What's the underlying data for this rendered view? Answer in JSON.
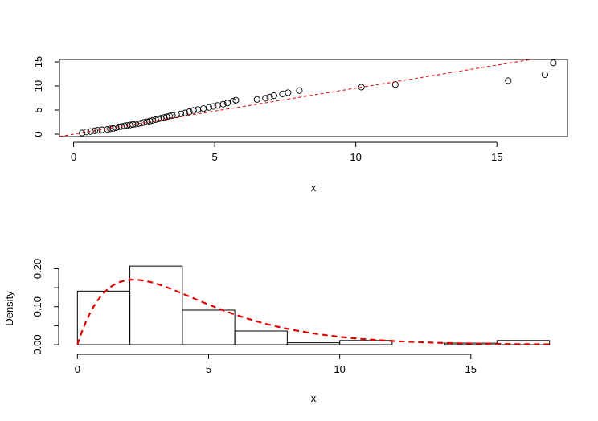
{
  "chart_data": [
    {
      "type": "scatter",
      "title": "",
      "xlabel": "x",
      "ylabel": "",
      "xlim": [
        -0.5,
        17.5
      ],
      "ylim": [
        -0.5,
        15.5
      ],
      "xticks": [
        0,
        5,
        10,
        15
      ],
      "yticks": [
        0,
        5,
        10,
        15
      ],
      "grid": false,
      "points": [
        [
          0.3,
          0.25
        ],
        [
          0.45,
          0.45
        ],
        [
          0.6,
          0.55
        ],
        [
          0.75,
          0.7
        ],
        [
          0.85,
          0.8
        ],
        [
          1.0,
          0.9
        ],
        [
          1.2,
          1.0
        ],
        [
          1.3,
          1.1
        ],
        [
          1.4,
          1.2
        ],
        [
          1.5,
          1.35
        ],
        [
          1.6,
          1.5
        ],
        [
          1.7,
          1.6
        ],
        [
          1.8,
          1.7
        ],
        [
          1.9,
          1.8
        ],
        [
          2.0,
          1.9
        ],
        [
          2.1,
          2.0
        ],
        [
          2.2,
          2.1
        ],
        [
          2.3,
          2.2
        ],
        [
          2.4,
          2.3
        ],
        [
          2.5,
          2.45
        ],
        [
          2.6,
          2.55
        ],
        [
          2.7,
          2.7
        ],
        [
          2.8,
          2.85
        ],
        [
          2.9,
          3.0
        ],
        [
          3.0,
          3.15
        ],
        [
          3.1,
          3.3
        ],
        [
          3.2,
          3.45
        ],
        [
          3.3,
          3.6
        ],
        [
          3.4,
          3.75
        ],
        [
          3.5,
          3.85
        ],
        [
          3.65,
          4.0
        ],
        [
          3.8,
          4.2
        ],
        [
          3.95,
          4.4
        ],
        [
          4.1,
          4.65
        ],
        [
          4.25,
          4.9
        ],
        [
          4.4,
          5.1
        ],
        [
          4.6,
          5.3
        ],
        [
          4.8,
          5.55
        ],
        [
          4.95,
          5.75
        ],
        [
          5.1,
          5.95
        ],
        [
          5.3,
          6.2
        ],
        [
          5.45,
          6.45
        ],
        [
          5.65,
          6.8
        ],
        [
          5.75,
          7.05
        ],
        [
          6.5,
          7.2
        ],
        [
          6.8,
          7.45
        ],
        [
          6.95,
          7.7
        ],
        [
          7.1,
          8.0
        ],
        [
          7.4,
          8.35
        ],
        [
          7.6,
          8.6
        ],
        [
          8.0,
          9.05
        ],
        [
          10.2,
          9.75
        ],
        [
          11.4,
          10.3
        ],
        [
          15.4,
          11.1
        ],
        [
          16.7,
          12.35
        ],
        [
          17.0,
          14.8
        ]
      ],
      "reference_line": {
        "intercept": 0,
        "slope": 0.955
      }
    },
    {
      "type": "bar",
      "title": "",
      "xlabel": "x",
      "ylabel": "Density",
      "xlim": [
        -0.5,
        18.5
      ],
      "ylim": [
        0,
        0.22
      ],
      "xticks": [
        0,
        5,
        10,
        15
      ],
      "yticks": [
        "0.00",
        "0.10",
        "0.20"
      ],
      "yticks_minor": [
        0.05,
        0.15
      ],
      "grid": false,
      "bins": [
        {
          "from": 0,
          "to": 2,
          "density": 0.141
        },
        {
          "from": 2,
          "to": 4,
          "density": 0.207
        },
        {
          "from": 4,
          "to": 6,
          "density": 0.091
        },
        {
          "from": 6,
          "to": 8,
          "density": 0.036
        },
        {
          "from": 8,
          "to": 10,
          "density": 0.005
        },
        {
          "from": 10,
          "to": 12,
          "density": 0.011
        },
        {
          "from": 12,
          "to": 14,
          "density": 0.0
        },
        {
          "from": 14,
          "to": 16,
          "density": 0.004
        },
        {
          "from": 16,
          "to": 18,
          "density": 0.011
        }
      ],
      "density_curve": {
        "shape": 2.0,
        "scale": 2.15,
        "x_range": [
          0,
          18
        ]
      }
    }
  ]
}
